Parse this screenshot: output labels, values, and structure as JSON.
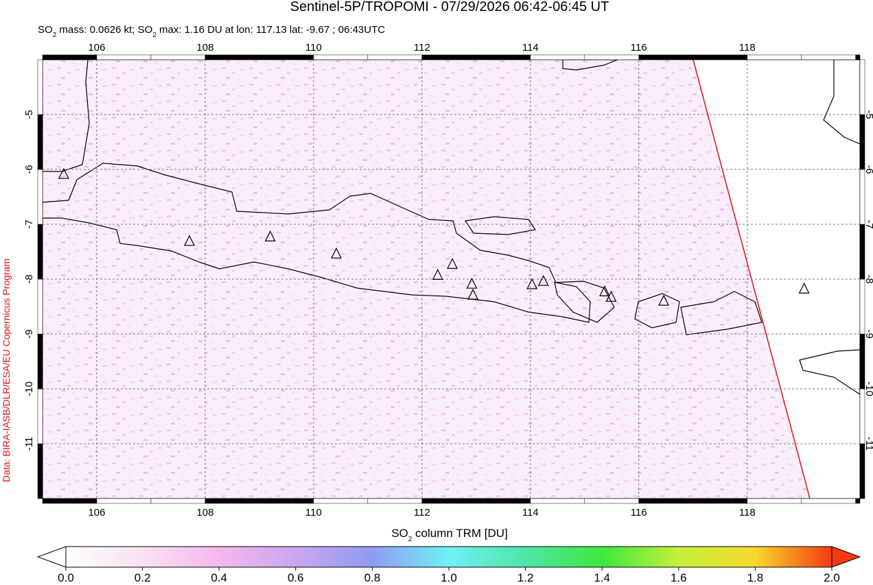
{
  "title": "Sentinel-5P/TROPOMI - 07/29/2026 06:42-06:45 UT",
  "subtitle": [
    "SO",
    "2",
    " mass: 0.0626 kt; SO",
    "2",
    " max: 1.16 DU at lon: 117.13 lat: -9.67 ; 06:43UTC"
  ],
  "credit": "Data: BIRA-IASB/DLR/ESA/EU Copernicus Program",
  "map": {
    "xlim": [
      105,
      120.08
    ],
    "ylim": [
      -12,
      -4
    ],
    "xticks": [
      106,
      108,
      110,
      112,
      114,
      116,
      118
    ],
    "yticks": [
      -5,
      -6,
      -7,
      -8,
      -9,
      -10,
      -11
    ],
    "volcanoes": {
      "lon": [
        105.39,
        107.71,
        109.2,
        110.42,
        112.29,
        112.56,
        112.94,
        112.92,
        114.03,
        114.24,
        115.37,
        115.49,
        116.46,
        119.05
      ],
      "lat": [
        -6.09,
        -7.31,
        -7.23,
        -7.54,
        -7.93,
        -7.73,
        -8.29,
        -8.09,
        -8.1,
        -8.04,
        -8.23,
        -8.33,
        -8.4,
        -8.18
      ]
    }
  },
  "colorbar": {
    "label": [
      "SO",
      "2",
      " column TRM [DU]"
    ],
    "lim": [
      0,
      2
    ],
    "ticks": [
      {
        "value": 0,
        "label": "0.0"
      },
      {
        "value": 0.2,
        "label": "0.2"
      },
      {
        "value": 0.4,
        "label": "0.4"
      },
      {
        "value": 0.6,
        "label": "0.6"
      },
      {
        "value": 0.8,
        "label": "0.8"
      },
      {
        "value": 1,
        "label": "1.0"
      },
      {
        "value": 1.2,
        "label": "1.2"
      },
      {
        "value": 1.4,
        "label": "1.4"
      },
      {
        "value": 1.6,
        "label": "1.6"
      },
      {
        "value": 1.8,
        "label": "1.8"
      },
      {
        "value": 2,
        "label": "2.0"
      }
    ]
  }
}
